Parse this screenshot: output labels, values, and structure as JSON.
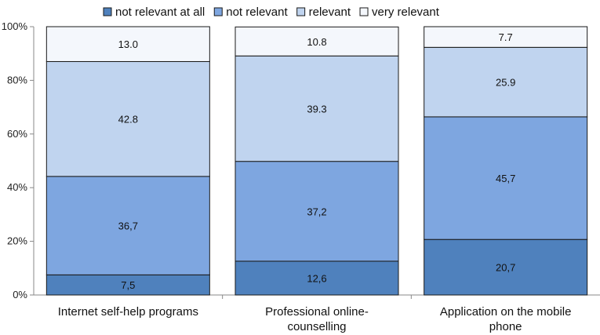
{
  "chart_data": {
    "type": "bar",
    "stacked": true,
    "percent_stacked": true,
    "categories": [
      "Internet self-help programs",
      "Professional online-counselling",
      "Application on the mobile phone"
    ],
    "category_lines": [
      [
        "Internet self-help programs"
      ],
      [
        "Professional online-",
        "counselling"
      ],
      [
        "Application on the mobile",
        "phone"
      ]
    ],
    "series": [
      {
        "name": "not relevant at all",
        "color": "#4f81bd",
        "values": [
          7.5,
          12.6,
          20.7
        ],
        "labels": [
          "7,5",
          "12,6",
          "20,7"
        ]
      },
      {
        "name": "not relevant",
        "color": "#7ea6e0",
        "values": [
          36.7,
          37.2,
          45.7
        ],
        "labels": [
          "36,7",
          "37,2",
          "45,7"
        ]
      },
      {
        "name": "relevant",
        "color": "#c0d4ef",
        "values": [
          42.8,
          39.3,
          25.9
        ],
        "labels": [
          "42.8",
          "39.3",
          "25.9"
        ]
      },
      {
        "name": "very relevant",
        "color": "#f4f7fc",
        "values": [
          13.0,
          10.8,
          7.7
        ],
        "labels": [
          "13.0",
          "10.8",
          "7.7"
        ]
      }
    ],
    "y_ticks": [
      "0%",
      "20%",
      "40%",
      "60%",
      "80%",
      "100%"
    ],
    "ylim": [
      0,
      100
    ],
    "legend_position": "top",
    "grid": false
  }
}
